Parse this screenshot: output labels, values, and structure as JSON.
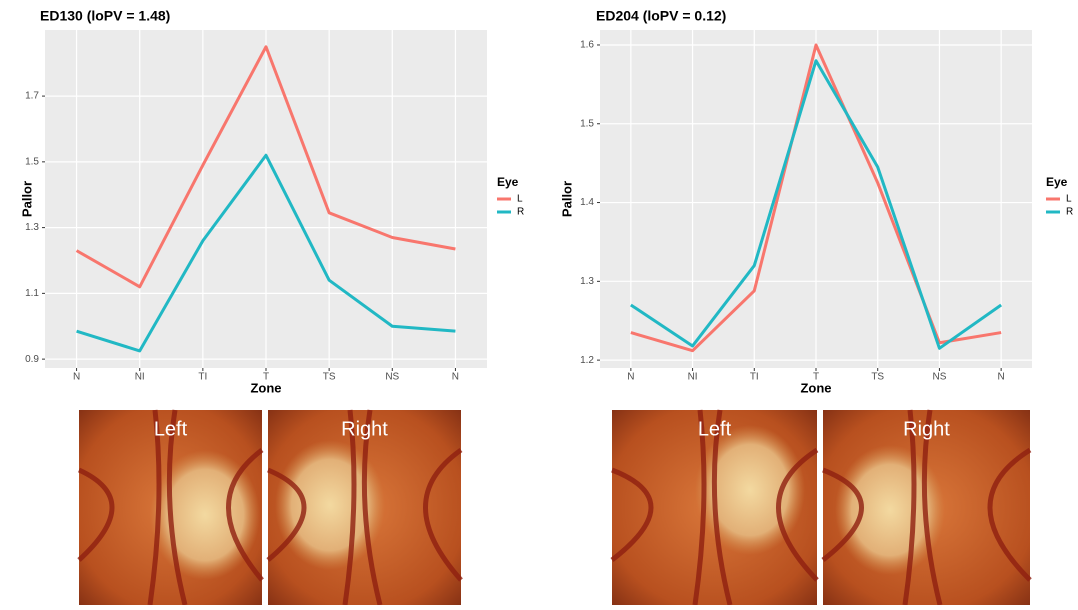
{
  "chart_data": [
    {
      "type": "line",
      "title": "ED130 (loPV = 1.48)",
      "x_label": "Zone",
      "y_label": "Pallor",
      "categories": [
        "N",
        "NI",
        "TI",
        "T",
        "TS",
        "NS",
        "N"
      ],
      "series": [
        {
          "name": "L",
          "color": "#F8766D",
          "values": [
            1.23,
            1.12,
            1.49,
            1.85,
            1.345,
            1.27,
            1.235
          ]
        },
        {
          "name": "R",
          "color": "#21B8C4",
          "values": [
            0.985,
            0.925,
            1.26,
            1.52,
            1.14,
            1.0,
            0.985
          ]
        }
      ],
      "legend_title": "Eye",
      "legend": "right",
      "grid": true,
      "ylim": [
        0.873,
        1.901
      ],
      "yticks": [
        0.9,
        1.1,
        1.3,
        1.5,
        1.7
      ]
    },
    {
      "type": "line",
      "title": "ED204 (loPV = 0.12)",
      "x_label": "Zone",
      "y_label": "Pallor",
      "categories": [
        "N",
        "NI",
        "TI",
        "T",
        "TS",
        "NS",
        "N"
      ],
      "series": [
        {
          "name": "L",
          "color": "#F8766D",
          "values": [
            1.235,
            1.212,
            1.288,
            1.6,
            1.425,
            1.222,
            1.235
          ]
        },
        {
          "name": "R",
          "color": "#21B8C4",
          "values": [
            1.27,
            1.218,
            1.32,
            1.58,
            1.445,
            1.215,
            1.27
          ]
        }
      ],
      "legend_title": "Eye",
      "legend": "right",
      "grid": true,
      "ylim": [
        1.19,
        1.619
      ],
      "yticks": [
        1.2,
        1.3,
        1.4,
        1.5,
        1.6
      ]
    }
  ],
  "photos": [
    [
      "Left",
      "Right"
    ],
    [
      "Left",
      "Right"
    ]
  ]
}
